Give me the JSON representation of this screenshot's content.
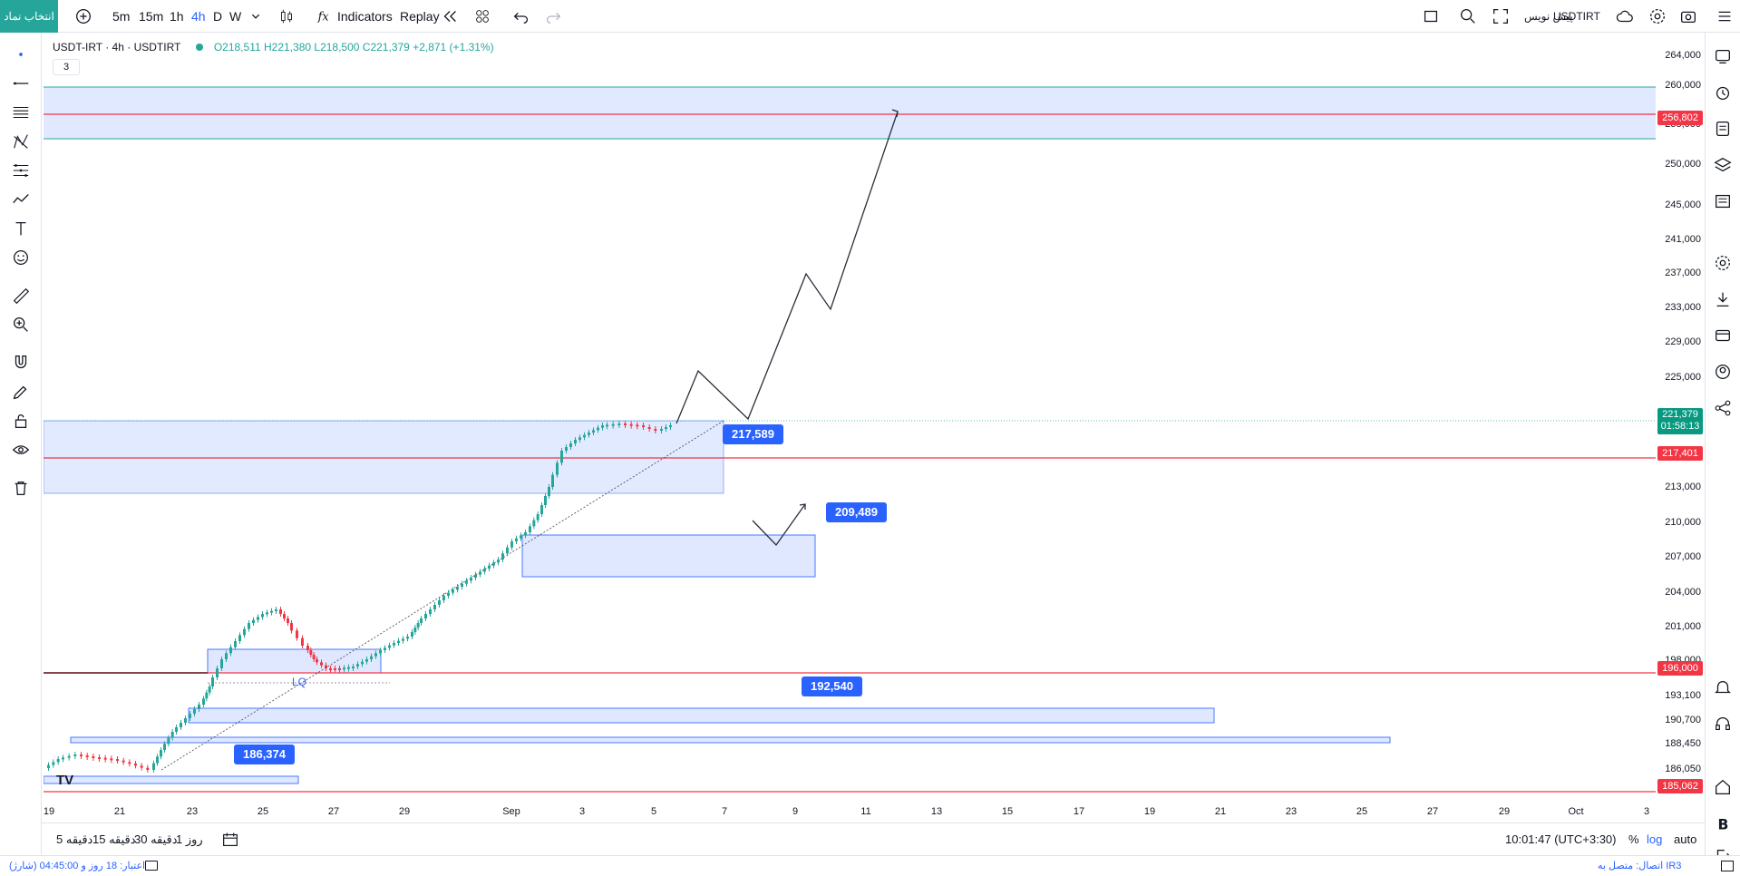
{
  "topbar": {
    "select_symbol": "انتخاب نماد",
    "intervals": [
      "5m",
      "15m",
      "1h",
      "4h",
      "D",
      "W"
    ],
    "active_interval": "4h",
    "indicators": "Indicators",
    "replay": "Replay",
    "symbol": "USDTIRT",
    "preview": "پیش نویس"
  },
  "legend": {
    "title": "USDT-IRT · 4h · USDTIRT",
    "open": "O218,511",
    "high": "H221,380",
    "low": "L218,500",
    "close": "C221,379",
    "change": "+2,871 (+1.31%)",
    "collapse_count": "3"
  },
  "price_axis": {
    "labels": [
      "264,000",
      "260,000",
      "255,000",
      "250,000",
      "245,000",
      "241,000",
      "237,000",
      "233,000",
      "229,000",
      "225,000",
      "213,000",
      "210,000",
      "207,000",
      "204,000",
      "201,000",
      "198,000",
      "193,100",
      "190,700",
      "188,450",
      "186,050"
    ],
    "tags": [
      {
        "text": "256,802",
        "color": "#f23645"
      },
      {
        "text": "221,379",
        "text2": "01:58:13",
        "color": "#089981"
      },
      {
        "text": "217,401",
        "color": "#f23645"
      },
      {
        "text": "196,000",
        "color": "#f23645"
      },
      {
        "text": "185,062",
        "color": "#f23645"
      }
    ]
  },
  "time_axis": {
    "labels": [
      "19",
      "21",
      "23",
      "25",
      "27",
      "29",
      "Sep",
      "3",
      "5",
      "7",
      "9",
      "11",
      "13",
      "15",
      "17",
      "19",
      "21",
      "23",
      "25",
      "27",
      "29",
      "Oct",
      "3"
    ]
  },
  "callouts": {
    "c1": "217,589",
    "c2": "209,489",
    "c3": "192,540",
    "c4": "186,374"
  },
  "lq_label": "LQ",
  "bottombar": {
    "ranges": [
      "روز 1",
      "دقیقه 30",
      "دقیقه 15",
      "دقیقه 5"
    ],
    "clock": "10:01:47 (UTC+3:30)",
    "percent": "%",
    "log": "log",
    "auto": "auto"
  },
  "status": {
    "credit": "اعتبار: 18 روز و 04:45:00 (شارژ)",
    "connection": "اتصال: متصل به IR3"
  },
  "colors": {
    "up": "#26a69a",
    "down": "#f23645",
    "zone_fill": "#dbe5ff",
    "zone_border": "#2962ff",
    "accent": "#2962ff"
  }
}
